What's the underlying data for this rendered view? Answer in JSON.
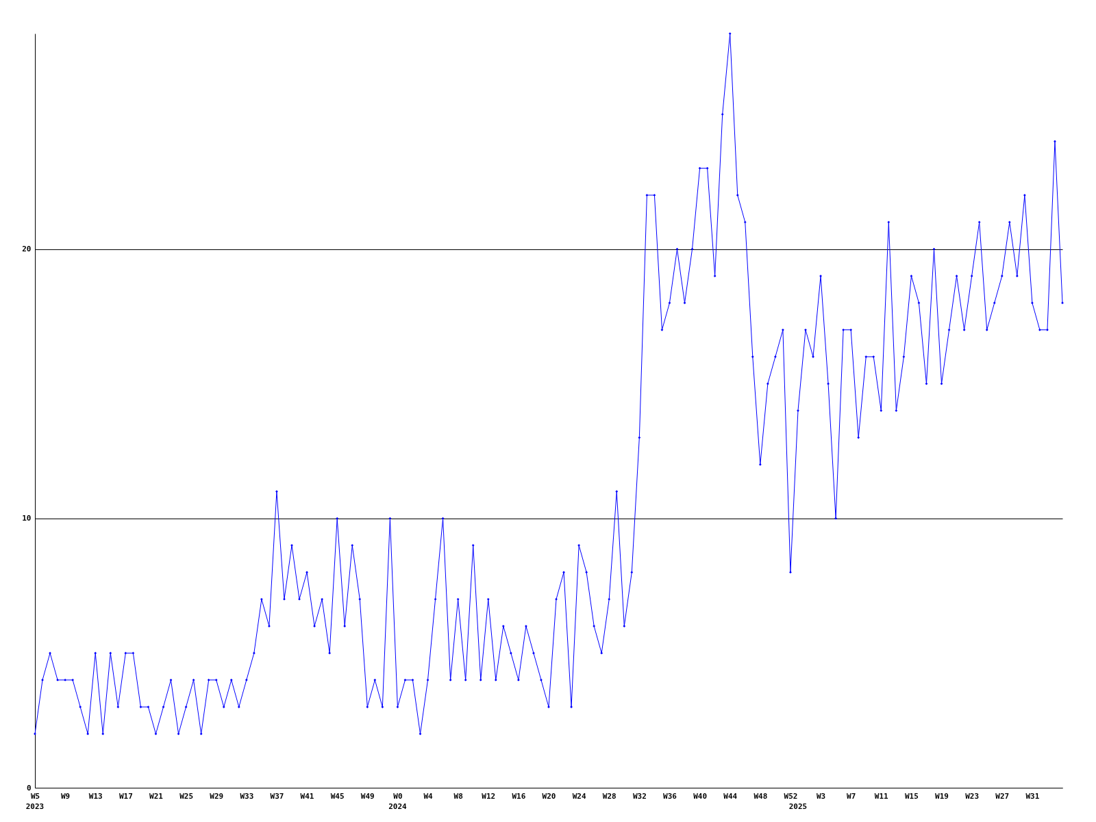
{
  "chart_data": {
    "type": "line",
    "categories": [
      "W5\n2023",
      null,
      null,
      null,
      "W9",
      null,
      null,
      null,
      "W13",
      null,
      null,
      null,
      "W17",
      null,
      null,
      null,
      "W21",
      null,
      null,
      null,
      "W25",
      null,
      null,
      null,
      "W29",
      null,
      null,
      null,
      "W33",
      null,
      null,
      null,
      "W37",
      null,
      null,
      null,
      "W41",
      null,
      null,
      null,
      "W45",
      null,
      null,
      null,
      "W49",
      null,
      null,
      null,
      "W0\n2024",
      null,
      null,
      null,
      "W4",
      null,
      null,
      null,
      "W8",
      null,
      null,
      null,
      "W12",
      null,
      null,
      null,
      "W16",
      null,
      null,
      null,
      "W20",
      null,
      null,
      null,
      "W24",
      null,
      null,
      null,
      "W28",
      null,
      null,
      null,
      "W32",
      null,
      null,
      null,
      "W36",
      null,
      null,
      null,
      "W40",
      null,
      null,
      null,
      "W44",
      null,
      null,
      null,
      "W48",
      null,
      null,
      null,
      "W52",
      "\n2025",
      null,
      null,
      "W3",
      null,
      null,
      null,
      "W7",
      null,
      null,
      null,
      "W11",
      null,
      null,
      null,
      "W15",
      null,
      null,
      null,
      "W19",
      null,
      null,
      null,
      "W23",
      null,
      null,
      null,
      "W27",
      null,
      null,
      null,
      "W31",
      null,
      null,
      null,
      null
    ],
    "series": [
      {
        "color": "#0000ff",
        "values": [
          2,
          4,
          5,
          4,
          4,
          4,
          3,
          2,
          5,
          2,
          5,
          3,
          5,
          5,
          3,
          3,
          2,
          3,
          4,
          2,
          3,
          4,
          2,
          4,
          4,
          3,
          4,
          3,
          4,
          5,
          7,
          6,
          11,
          7,
          9,
          7,
          8,
          6,
          7,
          5,
          10,
          6,
          9,
          7,
          3,
          4,
          3,
          10,
          3,
          4,
          4,
          2,
          4,
          7,
          10,
          4,
          7,
          4,
          9,
          4,
          7,
          4,
          6,
          5,
          4,
          6,
          5,
          4,
          3,
          7,
          8,
          3,
          9,
          8,
          6,
          5,
          7,
          11,
          6,
          8,
          13,
          22,
          22,
          17,
          18,
          20,
          18,
          20,
          23,
          23,
          19,
          25,
          28,
          22,
          21,
          16,
          12,
          15,
          16,
          17,
          8,
          14,
          17,
          16,
          19,
          15,
          10,
          17,
          17,
          13,
          16,
          16,
          14,
          21,
          14,
          16,
          19,
          18,
          15,
          20,
          15,
          17,
          19,
          17,
          19,
          21,
          17,
          18,
          19,
          21,
          19,
          22,
          18,
          17,
          17,
          24,
          18
        ]
      }
    ],
    "ylim": [
      0,
      28
    ],
    "yticks": [
      0,
      10,
      20
    ],
    "grid": "y",
    "marker": "diamond",
    "line_style": "solid"
  }
}
